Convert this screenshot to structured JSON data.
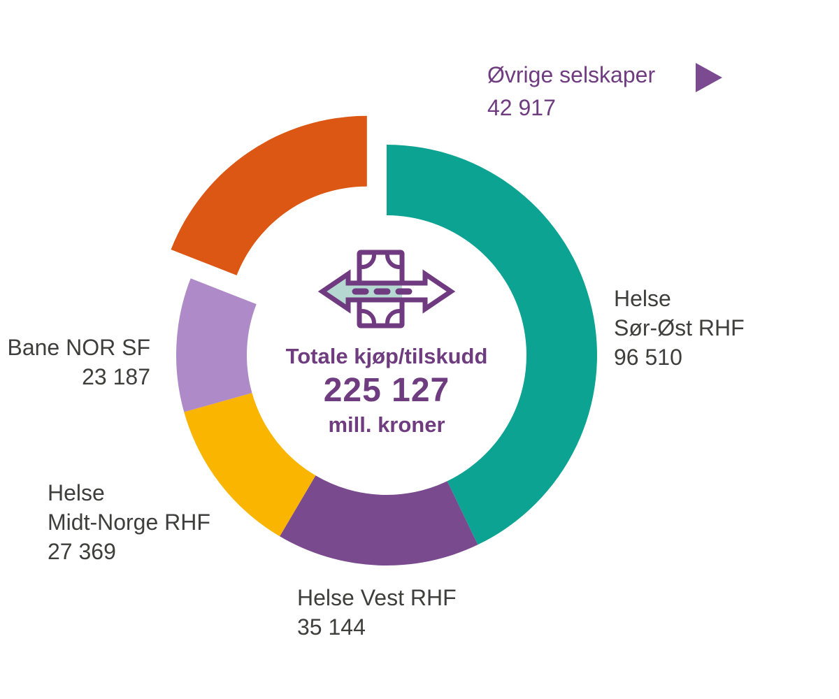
{
  "figure": {
    "background": "#FFFFFF"
  },
  "colors": {
    "text_purple": "#6F3C80",
    "label_gray": "#3E3E3D",
    "marker_purple": "#7B4A90",
    "icon_stroke": "#6F3A80",
    "icon_fill": "#B5D9D1"
  },
  "icons": {
    "center_icon": "banknote-with-two-way-arrow-icon",
    "ovrige_marker": "triangle-right-icon"
  },
  "chart_data": {
    "type": "pie",
    "subtype": "donut",
    "start_angle_deg": 0,
    "direction": "clockwise",
    "legend_position": "around-slices",
    "center": {
      "label": "Totale kjøp/tilskudd",
      "value": "225 127",
      "unit": "mill. kroner"
    },
    "total": 225127,
    "slices": [
      {
        "name": "Helse Sør-Øst RHF",
        "label_lines": [
          "Helse",
          "Sør-Øst RHF"
        ],
        "value": 96510,
        "value_display": "96 510",
        "color": "#0CA392",
        "exploded": false
      },
      {
        "name": "Helse Vest RHF",
        "label_lines": [
          "Helse Vest RHF"
        ],
        "value": 35144,
        "value_display": "35 144",
        "color": "#7A4A8F",
        "exploded": false
      },
      {
        "name": "Helse Midt-Norge RHF",
        "label_lines": [
          "Helse",
          "Midt-Norge RHF"
        ],
        "value": 27369,
        "value_display": "27 369",
        "color": "#F9B500",
        "exploded": false
      },
      {
        "name": "Bane NOR SF",
        "label_lines": [
          "Bane NOR SF"
        ],
        "value": 23187,
        "value_display": "23 187",
        "color": "#AE8BC8",
        "exploded": false
      },
      {
        "name": "Øvrige selskaper",
        "label_lines": [
          "Øvrige selskaper"
        ],
        "value": 42917,
        "value_display": "42 917",
        "color": "#DC5614",
        "exploded": true
      }
    ]
  }
}
